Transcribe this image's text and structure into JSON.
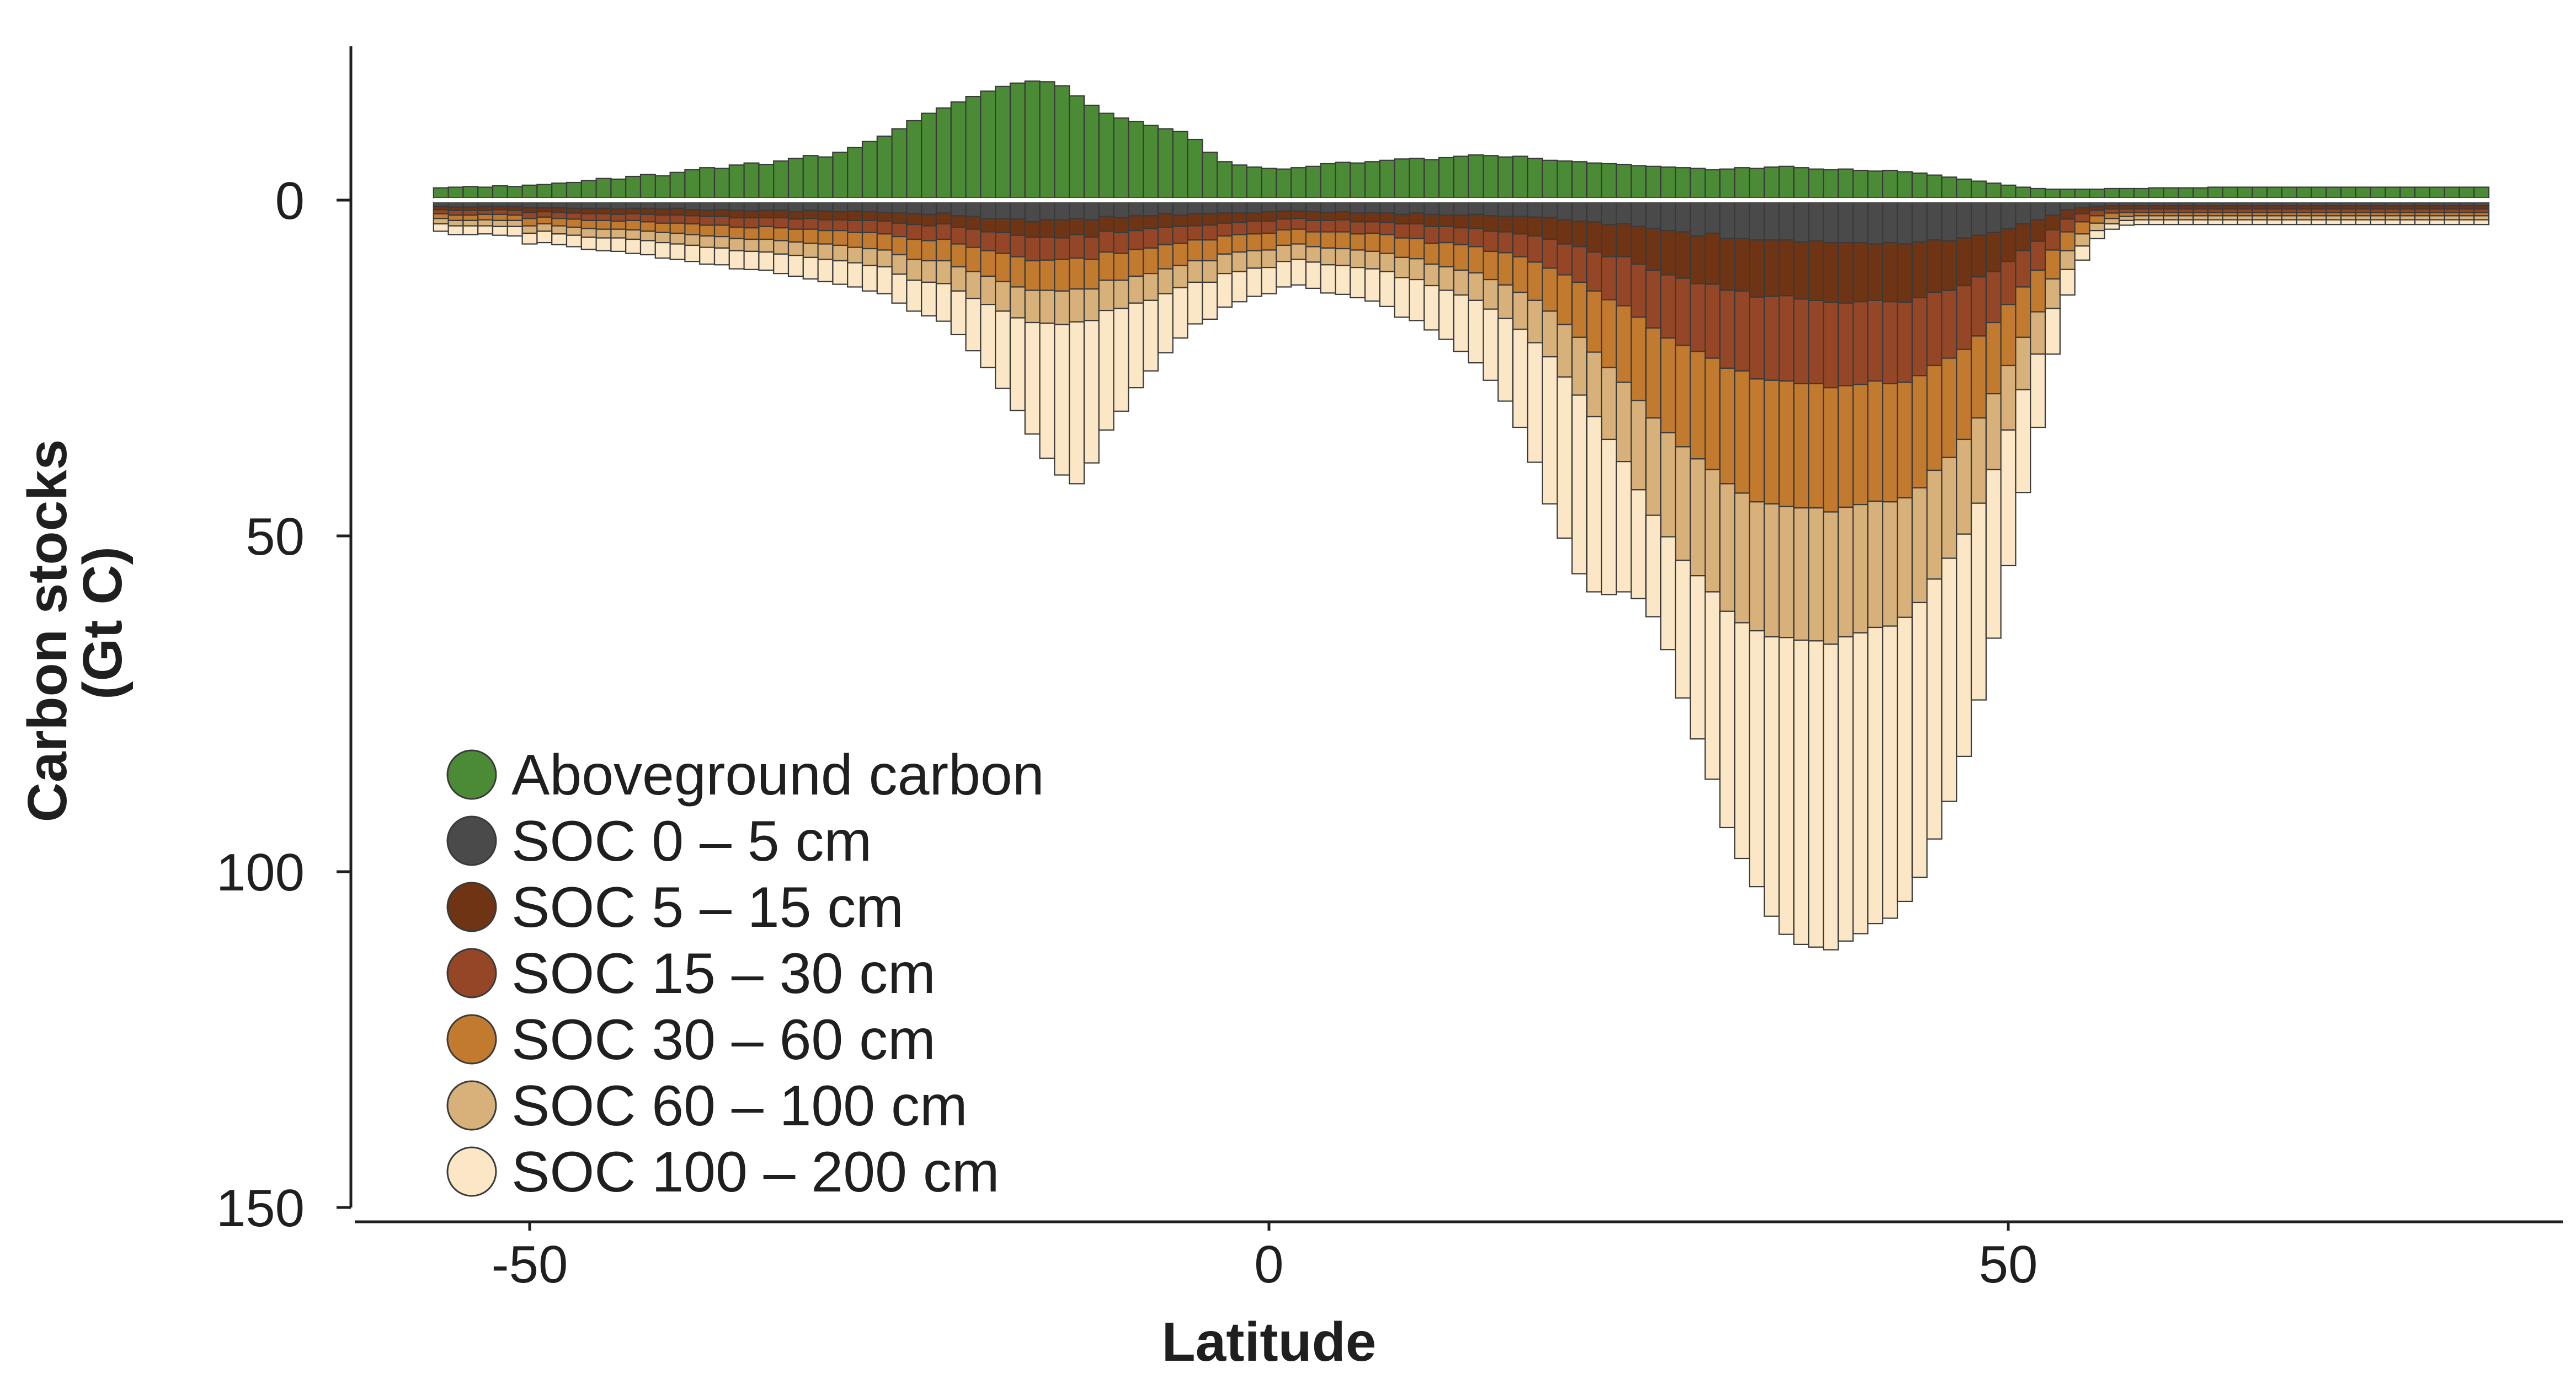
{
  "chart_data": {
    "type": "bar",
    "subtype": "stacked-bidirectional-histogram",
    "xlabel": "Latitude",
    "ylabel": "Carbon stocks",
    "ylabel_units": "(Gt C)",
    "xlim": [
      -60,
      85
    ],
    "ylim": [
      150,
      -25
    ],
    "x_ticks": [
      -50,
      0,
      50
    ],
    "x_tick_labels": [
      "-50",
      "0",
      "50"
    ],
    "y_ticks": [
      0,
      50,
      100,
      150
    ],
    "y_tick_labels": [
      "0",
      "50",
      "100",
      "150"
    ],
    "grid": false,
    "legend_position": "bottom-left",
    "bin_width_deg": 1,
    "lat": [
      -56,
      -55,
      -54,
      -53,
      -52,
      -51,
      -50,
      -49,
      -48,
      -47,
      -46,
      -45,
      -44,
      -43,
      -42,
      -41,
      -40,
      -39,
      -38,
      -37,
      -36,
      -35,
      -34,
      -33,
      -32,
      -31,
      -30,
      -29,
      -28,
      -27,
      -26,
      -25,
      -24,
      -23,
      -22,
      -21,
      -20,
      -19,
      -18,
      -17,
      -16,
      -15,
      -14,
      -13,
      -12,
      -11,
      -10,
      -9,
      -8,
      -7,
      -6,
      -5,
      -4,
      -3,
      -2,
      -1,
      0,
      1,
      2,
      3,
      4,
      5,
      6,
      7,
      8,
      9,
      10,
      11,
      12,
      13,
      14,
      15,
      16,
      17,
      18,
      19,
      20,
      21,
      22,
      23,
      24,
      25,
      26,
      27,
      28,
      29,
      30,
      31,
      32,
      33,
      34,
      35,
      36,
      37,
      38,
      39,
      40,
      41,
      42,
      43,
      44,
      45,
      46,
      47,
      48,
      49,
      50,
      51,
      52,
      53,
      54,
      55,
      56,
      57,
      58,
      59,
      60,
      61,
      62,
      63,
      64,
      65,
      66,
      67,
      68,
      69,
      70,
      71,
      72,
      73,
      74,
      75,
      76,
      77,
      78,
      79,
      80,
      81,
      82
    ],
    "series": [
      {
        "name": "Aboveground carbon",
        "color": "#4b8b35",
        "direction": "up",
        "values": [
          1.5,
          1.6,
          1.7,
          1.6,
          1.8,
          1.7,
          1.9,
          2,
          2.2,
          2.3,
          2.6,
          2.9,
          2.8,
          3.2,
          3.5,
          3.3,
          3.8,
          4.2,
          4.5,
          4.4,
          4.9,
          5.2,
          5,
          5.5,
          5.9,
          6.3,
          6.1,
          6.8,
          7.5,
          8.4,
          9.2,
          10.3,
          11.5,
          12.6,
          13.4,
          14.3,
          15.1,
          15.9,
          16.6,
          17.1,
          17.4,
          17.3,
          16.7,
          15.2,
          13.8,
          12.6,
          11.9,
          11.4,
          10.8,
          10.3,
          9.9,
          8.7,
          6.8,
          5.4,
          4.9,
          4.6,
          4.4,
          4.3,
          4.5,
          4.7,
          5.1,
          5.3,
          5.2,
          5.4,
          5.6,
          5.8,
          5.9,
          5.7,
          6,
          6.2,
          6.4,
          6.3,
          6.1,
          6.2,
          5.9,
          5.6,
          5.5,
          5.4,
          5.2,
          5.1,
          5,
          4.8,
          4.7,
          4.6,
          4.5,
          4.4,
          4.2,
          4.3,
          4.5,
          4.4,
          4.6,
          4.7,
          4.5,
          4.3,
          4.2,
          4.3,
          4.1,
          4,
          4.1,
          3.9,
          3.7,
          3.4,
          3.1,
          2.8,
          2.5,
          2.2,
          1.9,
          1.6,
          1.4,
          1.3,
          1.3,
          1.3,
          1.3,
          1.4,
          1.4,
          1.4,
          1.5,
          1.5,
          1.5,
          1.5,
          1.6,
          1.6,
          1.6,
          1.6,
          1.6,
          1.6,
          1.6,
          1.6,
          1.6,
          1.6,
          1.6,
          1.6,
          1.6,
          1.6,
          1.6,
          1.6,
          1.6,
          1.6,
          1.6
        ]
      },
      {
        "name": "SOC 0 – 5 cm",
        "color": "#4a4a4a",
        "direction": "down",
        "values": [
          0.6,
          0.7,
          0.7,
          0.6,
          0.6,
          0.6,
          0.8,
          0.8,
          0.8,
          0.9,
          0.9,
          0.9,
          1,
          0.9,
          0.9,
          1,
          0.9,
          1.1,
          1.2,
          1.1,
          1.2,
          1.3,
          1.2,
          1.2,
          1.4,
          1.2,
          1.3,
          1.4,
          1.3,
          1.4,
          1.5,
          1.6,
          1.7,
          1.8,
          1.6,
          2,
          2.1,
          2.4,
          2.4,
          2.5,
          2.9,
          2.6,
          2.6,
          2.4,
          2.6,
          2.1,
          2.3,
          2,
          2,
          1.7,
          1.9,
          1.7,
          1.7,
          1.6,
          1.6,
          1.6,
          1.4,
          1.3,
          1.3,
          1.4,
          1.5,
          1.4,
          1.6,
          1.5,
          1.6,
          1.8,
          1.6,
          1.8,
          1.9,
          1.9,
          1.8,
          2,
          2.1,
          2.1,
          2.2,
          2.3,
          2.6,
          2.8,
          2.9,
          3.3,
          3.2,
          3.6,
          3.9,
          4.2,
          4.4,
          5,
          4.6,
          5.4,
          5.4,
          5.6,
          5.6,
          5.6,
          5.9,
          5.7,
          6,
          6,
          6,
          6.2,
          6,
          6.2,
          5.9,
          5.6,
          5.7,
          5.3,
          4.9,
          4.5,
          3.9,
          3.2,
          2.6,
          1.9,
          1.1,
          0.8,
          0.6,
          0.5,
          0.5,
          0.5,
          0.5,
          0.5,
          0.5,
          0.5,
          0.5,
          0.5,
          0.5,
          0.5,
          0.5,
          0.5,
          0.5,
          0.5,
          0.5,
          0.5,
          0.5,
          0.5,
          0.5,
          0.5,
          0.5,
          0.5,
          0.5,
          0.5,
          0.5
        ]
      },
      {
        "name": "SOC 5 – 15 cm",
        "color": "#6e3414",
        "direction": "down",
        "values": [
          0.5,
          0.5,
          0.5,
          0.6,
          0.5,
          0.6,
          0.7,
          0.6,
          0.7,
          0.7,
          0.8,
          0.8,
          0.8,
          0.8,
          0.9,
          0.9,
          1,
          0.9,
          0.9,
          1,
          1.1,
          1,
          1.1,
          1.1,
          1.1,
          1.2,
          1.3,
          1.2,
          1.4,
          1.3,
          1.3,
          1.5,
          1.6,
          1.7,
          1.6,
          1.7,
          1.9,
          2,
          2.1,
          2.4,
          2.3,
          2.6,
          2.7,
          2.4,
          2.6,
          2.2,
          2.2,
          2.2,
          1.9,
          2,
          1.7,
          1.8,
          1.7,
          1.5,
          1.4,
          1.2,
          1.4,
          1.2,
          1.1,
          1.3,
          1.2,
          1.2,
          1.3,
          1.4,
          1.4,
          1.4,
          1.6,
          1.8,
          1.7,
          1.9,
          2.1,
          2.3,
          2.3,
          2.6,
          2.8,
          3.2,
          3.6,
          3.8,
          4.5,
          4.8,
          4.9,
          5.6,
          6.2,
          6.6,
          6.9,
          7.1,
          7.6,
          7.7,
          7.8,
          8.5,
          8.4,
          8.3,
          8.5,
          8.9,
          8.9,
          9,
          8.8,
          8.4,
          8.8,
          8.7,
          8.3,
          7.8,
          7.4,
          7.1,
          6.2,
          5.8,
          4.9,
          4,
          3.2,
          2.2,
          1.4,
          0.9,
          0.6,
          0.5,
          0.5,
          0.5,
          0.5,
          0.5,
          0.5,
          0.5,
          0.5,
          0.5,
          0.5,
          0.5,
          0.5,
          0.5,
          0.5,
          0.5,
          0.5,
          0.5,
          0.5,
          0.5,
          0.5,
          0.5,
          0.5,
          0.5,
          0.5,
          0.5,
          0.5
        ]
      },
      {
        "name": "SOC 15 – 30 cm",
        "color": "#944626",
        "direction": "down",
        "values": [
          0.6,
          0.7,
          0.7,
          0.6,
          0.7,
          0.7,
          0.9,
          0.8,
          0.9,
          0.9,
          1,
          1,
          1,
          1,
          1.1,
          1.2,
          1.2,
          1.2,
          1.3,
          1.3,
          1.4,
          1.5,
          1.3,
          1.5,
          1.5,
          1.6,
          1.6,
          1.6,
          1.8,
          1.8,
          1.9,
          2,
          2.2,
          2.2,
          2.3,
          2.5,
          2.7,
          2.8,
          3.1,
          3.2,
          3.5,
          3.4,
          3.2,
          3.5,
          3.3,
          3.1,
          3.1,
          2.8,
          2.9,
          2.6,
          2.5,
          2.1,
          2.2,
          1.9,
          1.8,
          1.9,
          1.8,
          1.6,
          1.6,
          1.7,
          1.7,
          1.8,
          1.8,
          1.7,
          1.8,
          2.1,
          2.2,
          2.5,
          2.4,
          2.5,
          2.7,
          3,
          3.1,
          3.4,
          3.9,
          4.3,
          4.6,
          5.3,
          5.8,
          6.4,
          7.3,
          7.9,
          8.6,
          9.4,
          10,
          10.1,
          11,
          11.6,
          11.9,
          12.2,
          12.5,
          12.7,
          12.6,
          12.4,
          12.7,
          12.3,
          12.3,
          12,
          12.2,
          11.9,
          11.6,
          10.9,
          10.1,
          9.5,
          8.8,
          7.6,
          6.4,
          5.4,
          4.3,
          3,
          1.9,
          1.2,
          0.8,
          0.6,
          0.5,
          0.5,
          0.5,
          0.5,
          0.5,
          0.5,
          0.5,
          0.5,
          0.5,
          0.5,
          0.5,
          0.5,
          0.5,
          0.5,
          0.5,
          0.5,
          0.5,
          0.5,
          0.5,
          0.5,
          0.5,
          0.5,
          0.5,
          0.5,
          0.5
        ]
      },
      {
        "name": "SOC 30 – 60 cm",
        "color": "#c17a2e",
        "direction": "down",
        "values": [
          0.7,
          0.8,
          0.8,
          0.8,
          0.9,
          0.8,
          1.1,
          1,
          1.1,
          1.2,
          1.2,
          1.3,
          1.2,
          1.4,
          1.4,
          1.4,
          1.5,
          1.6,
          1.6,
          1.7,
          1.7,
          1.7,
          1.9,
          1.9,
          1.9,
          2.1,
          2,
          2.2,
          2.2,
          2.4,
          2.4,
          2.7,
          3,
          3,
          3.2,
          3.4,
          3.6,
          3.8,
          4.2,
          4.5,
          4.4,
          4.5,
          4.7,
          4.6,
          4.4,
          4.2,
          4,
          4,
          3.8,
          3.6,
          3.3,
          3.1,
          3.1,
          2.7,
          2.6,
          2.5,
          2.5,
          2.3,
          2.2,
          2.2,
          2.4,
          2.5,
          2.4,
          2.7,
          2.8,
          2.9,
          3,
          3.1,
          3.6,
          3.8,
          3.9,
          4.2,
          4.8,
          5.3,
          5.7,
          6.4,
          7.4,
          8.2,
          9.1,
          10.1,
          11.4,
          12.4,
          13.4,
          14.1,
          15.1,
          16,
          16.6,
          17.2,
          18.2,
          18.3,
          18.4,
          18.7,
          18.5,
          18.5,
          18.5,
          18.1,
          17.9,
          17.9,
          17.6,
          17.2,
          16.7,
          15.6,
          14.8,
          13.4,
          12.2,
          10.6,
          9.1,
          7.5,
          6.2,
          4.3,
          2.8,
          1.8,
          1.1,
          0.8,
          0.6,
          0.5,
          0.5,
          0.5,
          0.5,
          0.5,
          0.5,
          0.5,
          0.5,
          0.5,
          0.5,
          0.5,
          0.5,
          0.5,
          0.5,
          0.5,
          0.5,
          0.5,
          0.5,
          0.5,
          0.5,
          0.5,
          0.5,
          0.5,
          0.5
        ]
      },
      {
        "name": "SOC 60 – 100 cm",
        "color": "#d7b07a",
        "direction": "down",
        "values": [
          0.8,
          0.8,
          0.8,
          0.9,
          0.9,
          0.9,
          1.1,
          1.1,
          1.2,
          1.2,
          1.3,
          1.3,
          1.3,
          1.4,
          1.4,
          1.5,
          1.6,
          1.6,
          1.7,
          1.7,
          1.8,
          1.8,
          1.9,
          2,
          2,
          2.1,
          2.3,
          2.3,
          2.3,
          2.5,
          2.5,
          2.9,
          3.1,
          3.2,
          3.4,
          3.6,
          4,
          4.2,
          4.4,
          4.6,
          4.8,
          4.9,
          5,
          4.9,
          4.7,
          4.5,
          4.2,
          4,
          4,
          3.7,
          3.3,
          3.2,
          3.2,
          2.9,
          2.9,
          2.6,
          2.6,
          2.4,
          2.3,
          2.3,
          2.5,
          2.5,
          2.6,
          2.6,
          2.7,
          3,
          3.1,
          3.2,
          3.5,
          3.7,
          4.1,
          4.4,
          5,
          5.5,
          6.3,
          6.8,
          7.8,
          8.6,
          9.6,
          10.7,
          11.8,
          13.3,
          14.5,
          15.5,
          16.9,
          17.4,
          18.2,
          19,
          19.3,
          19.2,
          19.8,
          19.5,
          19.7,
          19.8,
          19.7,
          19.3,
          19.1,
          18.8,
          18.5,
          17.8,
          17.1,
          16.2,
          15,
          14.1,
          12.7,
          11.3,
          9.6,
          7.8,
          6.3,
          4.4,
          2.8,
          1.8,
          1.1,
          0.8,
          0.6,
          0.6,
          0.6,
          0.6,
          0.6,
          0.6,
          0.6,
          0.6,
          0.6,
          0.6,
          0.6,
          0.6,
          0.6,
          0.6,
          0.6,
          0.6,
          0.6,
          0.6,
          0.6,
          0.6,
          0.6,
          0.6,
          0.6,
          0.6,
          0.6
        ]
      },
      {
        "name": "SOC 100 – 200 cm",
        "color": "#fbe7c6",
        "direction": "down",
        "values": [
          1.1,
          1.3,
          1.3,
          1.2,
          1.3,
          1.4,
          1.6,
          1.7,
          1.6,
          1.7,
          1.8,
          1.9,
          2,
          2.1,
          2.1,
          2.3,
          2.3,
          2.4,
          2.5,
          2.5,
          2.7,
          2.7,
          2.7,
          2.9,
          3.1,
          3.2,
          3.3,
          3.5,
          3.6,
          3.8,
          4,
          4.3,
          4.6,
          5,
          5.6,
          6.5,
          7.8,
          9.4,
          11.5,
          13.8,
          16.6,
          20.1,
          22.4,
          24.1,
          21.2,
          17.8,
          15.3,
          12.6,
          10.5,
          8.8,
          7.5,
          6.2,
          5.5,
          5,
          4.5,
          4.2,
          3.9,
          3.8,
          3.8,
          3.9,
          4.2,
          4.3,
          4.5,
          4.8,
          5.2,
          5.9,
          6.1,
          6.6,
          7.3,
          8.4,
          9.3,
          10.6,
          12.3,
          14.6,
          17.8,
          21.9,
          24,
          26.6,
          26.1,
          23.1,
          19.4,
          16.2,
          15.1,
          16.8,
          20.5,
          24.3,
          27.9,
          32.2,
          35.1,
          38.1,
          41.6,
          44.2,
          45.3,
          45.6,
          45.5,
          45.3,
          44.8,
          44.1,
          43.5,
          42.3,
          40.9,
          38.7,
          36.2,
          33.1,
          29.3,
          25.1,
          20.2,
          15.3,
          10.9,
          6.8,
          3.8,
          2.1,
          1.2,
          0.8,
          0.7,
          0.7,
          0.7,
          0.7,
          0.7,
          0.7,
          0.7,
          0.7,
          0.7,
          0.7,
          0.7,
          0.7,
          0.7,
          0.7,
          0.7,
          0.7,
          0.7,
          0.7,
          0.7,
          0.7,
          0.7,
          0.7,
          0.7,
          0.7,
          0.7
        ]
      }
    ]
  }
}
